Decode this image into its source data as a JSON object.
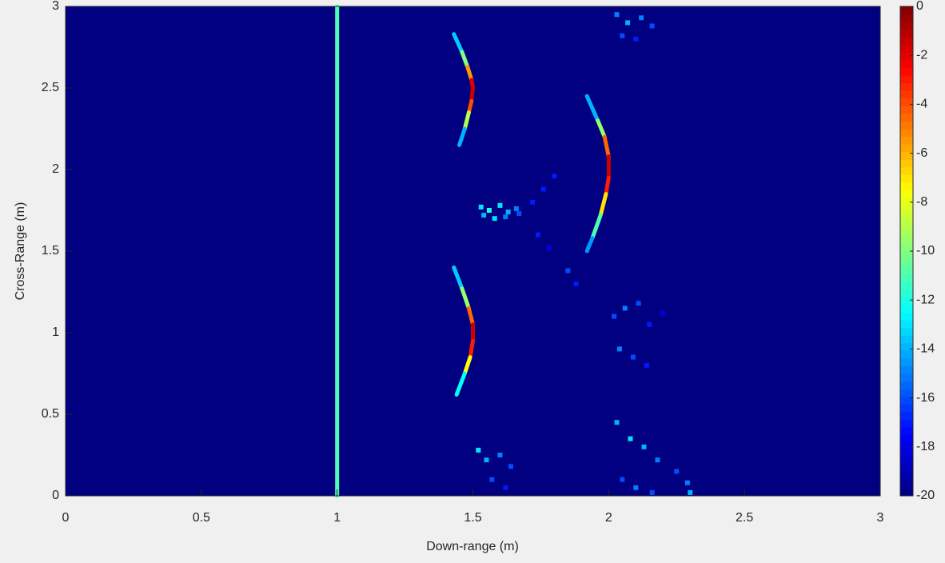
{
  "chart_data": {
    "type": "heatmap",
    "xlabel": "Down-range (m)",
    "ylabel": "Cross-Range (m)",
    "xlim": [
      0,
      3
    ],
    "ylim": [
      0,
      3
    ],
    "xticks": [
      0,
      0.5,
      1,
      1.5,
      2,
      2.5,
      3
    ],
    "yticks": [
      0,
      0.5,
      1,
      1.5,
      2,
      2.5,
      3
    ],
    "clim": [
      -20,
      0
    ],
    "cticks": [
      0,
      -2,
      -4,
      -6,
      -8,
      -10,
      -12,
      -14,
      -16,
      -18,
      -20
    ],
    "colormap": "jet",
    "ridges": [
      {
        "x": [
          1,
          1
        ],
        "y": [
          0,
          3
        ],
        "values": [
          -11,
          -11
        ]
      },
      {
        "x": [
          1.43,
          1.46,
          1.48,
          1.495,
          1.5,
          1.495,
          1.485,
          1.47,
          1.45
        ],
        "y": [
          2.83,
          2.72,
          2.63,
          2.55,
          2.5,
          2.42,
          2.35,
          2.25,
          2.15
        ],
        "values": [
          -15,
          -12,
          -8,
          -3,
          -1,
          -2,
          -6,
          -12,
          -16
        ]
      },
      {
        "x": [
          1.92,
          1.96,
          1.985,
          2,
          2,
          1.99,
          1.97,
          1.94,
          1.92
        ],
        "y": [
          2.45,
          2.3,
          2.2,
          2.08,
          1.95,
          1.85,
          1.72,
          1.58,
          1.5
        ],
        "values": [
          -16,
          -12,
          -7,
          -2,
          -1,
          -5,
          -9,
          -13,
          -16
        ]
      },
      {
        "x": [
          1.43,
          1.46,
          1.485,
          1.5,
          1.5,
          1.49,
          1.47,
          1.44
        ],
        "y": [
          1.4,
          1.27,
          1.15,
          1.05,
          0.95,
          0.85,
          0.75,
          0.62
        ],
        "values": [
          -15,
          -12,
          -7,
          -2,
          -1,
          -5,
          -10,
          -15
        ]
      }
    ],
    "speckles": {
      "x": [
        1.53,
        1.56,
        1.6,
        1.63,
        1.66,
        1.54,
        1.58,
        1.62,
        1.67,
        1.72,
        1.76,
        1.8,
        1.74,
        1.78,
        1.52,
        1.55,
        1.6,
        1.64,
        1.57,
        1.62,
        2.03,
        2.07,
        2.12,
        2.16,
        2.05,
        2.1,
        2.02,
        2.06,
        2.11,
        2.15,
        2.2,
        2.04,
        2.09,
        2.14,
        2.03,
        2.08,
        2.13,
        2.18,
        2.25,
        2.29,
        2.3,
        2.05,
        2.1,
        2.16,
        1.85,
        1.88
      ],
      "y": [
        1.77,
        1.75,
        1.78,
        1.74,
        1.76,
        1.72,
        1.7,
        1.71,
        1.73,
        1.8,
        1.88,
        1.96,
        1.6,
        1.52,
        0.28,
        0.22,
        0.25,
        0.18,
        0.1,
        0.05,
        2.95,
        2.9,
        2.93,
        2.88,
        2.82,
        2.8,
        1.1,
        1.15,
        1.18,
        1.05,
        1.12,
        0.9,
        0.85,
        0.8,
        0.45,
        0.35,
        0.3,
        0.22,
        0.15,
        0.08,
        0.02,
        0.1,
        0.05,
        0.02,
        1.38,
        1.3
      ],
      "values": [
        -13,
        -12,
        -13,
        -14,
        -15,
        -14,
        -13,
        -15,
        -16,
        -17,
        -17,
        -17,
        -17,
        -18,
        -13,
        -14,
        -15,
        -16,
        -16,
        -17,
        -15,
        -14,
        -15,
        -16,
        -16,
        -17,
        -16,
        -15,
        -16,
        -17,
        -18,
        -15,
        -16,
        -17,
        -14,
        -13,
        -14,
        -15,
        -16,
        -15,
        -14,
        -16,
        -15,
        -16,
        -16,
        -17
      ]
    }
  }
}
